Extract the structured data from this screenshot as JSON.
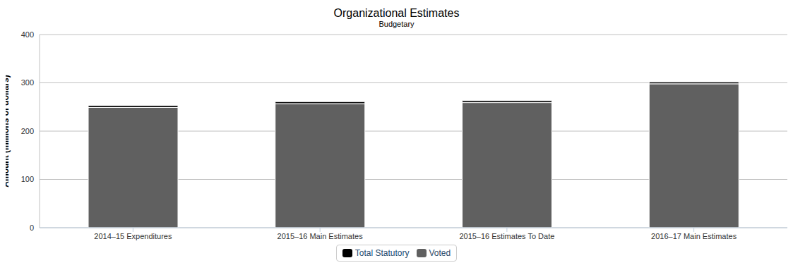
{
  "chart_data": {
    "type": "bar",
    "title": "Organizational Estimates",
    "subtitle": "Budgetary",
    "y_label": "Amount (millions of dollars)",
    "categories": [
      "2014–15 Expenditures",
      "2015–16 Main Estimates",
      "2015–16 Estimates To Date",
      "2016–17 Main Estimates"
    ],
    "series": [
      {
        "name": "Total Statutory",
        "color": "#000000",
        "values": [
          4,
          4,
          4,
          4
        ]
      },
      {
        "name": "Voted",
        "color": "#606060",
        "values": [
          249,
          257,
          259,
          298
        ]
      }
    ],
    "stacked": true,
    "ylim": [
      0,
      400
    ],
    "yticks": [
      0,
      100,
      200,
      300,
      400
    ],
    "grid": true,
    "legend": "bottom"
  }
}
